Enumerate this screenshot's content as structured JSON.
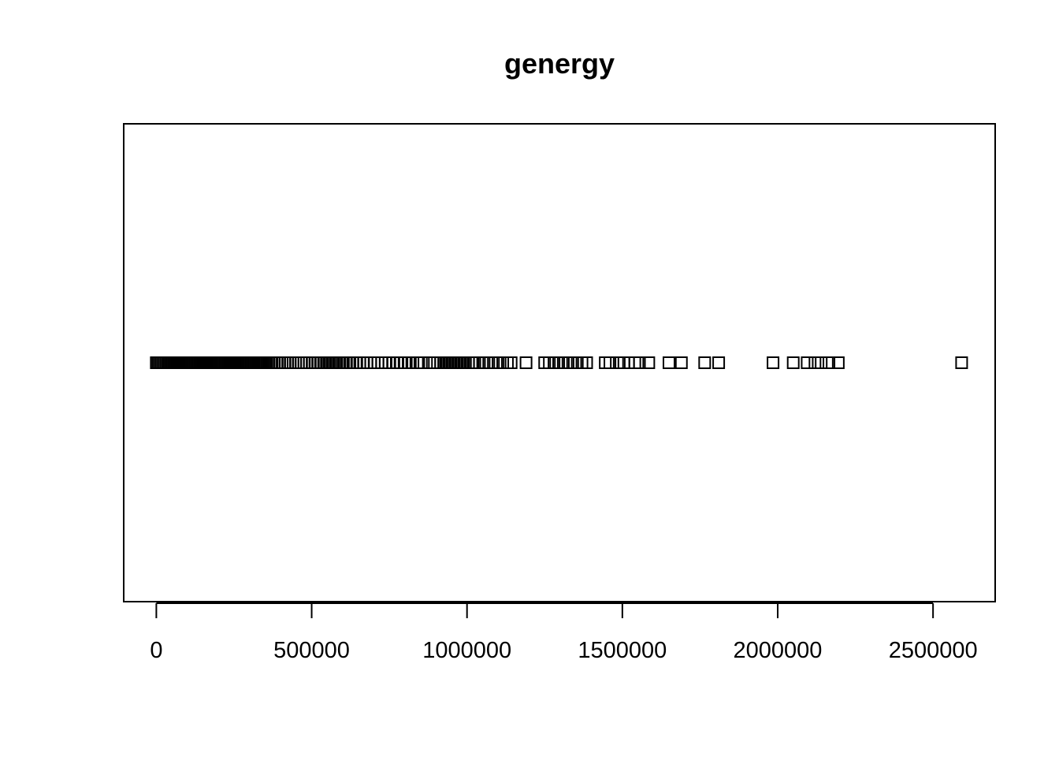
{
  "chart_data": {
    "type": "scatter",
    "title": "genergy",
    "xlabel": "",
    "ylabel": "",
    "xlim": [
      -105000,
      2700000
    ],
    "x_ticks": [
      0,
      500000,
      1000000,
      1500000,
      2000000,
      2500000
    ],
    "x_tick_labels": [
      "0",
      "500000",
      "1000000",
      "1500000",
      "2000000",
      "2500000"
    ],
    "marker": "open-square",
    "grid": false,
    "legend": "none",
    "x": [
      0,
      5000,
      10000,
      15000,
      20000,
      25000,
      30000,
      35000,
      40000,
      45000,
      50000,
      55000,
      60000,
      65000,
      70000,
      75000,
      80000,
      85000,
      90000,
      95000,
      100000,
      105000,
      110000,
      115000,
      120000,
      125000,
      130000,
      135000,
      140000,
      145000,
      150000,
      155000,
      160000,
      165000,
      170000,
      175000,
      180000,
      185000,
      190000,
      195000,
      200000,
      205000,
      210000,
      215000,
      220000,
      225000,
      230000,
      235000,
      240000,
      245000,
      250000,
      255000,
      260000,
      265000,
      270000,
      275000,
      280000,
      285000,
      290000,
      295000,
      300000,
      305000,
      310000,
      315000,
      320000,
      325000,
      330000,
      335000,
      340000,
      345000,
      350000,
      356000,
      363000,
      372000,
      380000,
      389000,
      397000,
      405000,
      414000,
      423000,
      431000,
      440000,
      448000,
      457000,
      466000,
      475000,
      484000,
      493000,
      503000,
      512000,
      521000,
      531000,
      541000,
      551000,
      561000,
      571000,
      581000,
      591000,
      602000,
      612000,
      623000,
      633000,
      645000,
      655000,
      667000,
      678000,
      690000,
      701000,
      713000,
      725000,
      737000,
      749000,
      762000,
      775000,
      787000,
      800000,
      813000,
      826000,
      840000,
      853000,
      880000,
      895000,
      905000,
      915000,
      925000,
      935000,
      945000,
      955000,
      965000,
      975000,
      985000,
      995000,
      1005000,
      1015000,
      1025000,
      1040000,
      1055000,
      1070000,
      1085000,
      1100000,
      1115000,
      1130000,
      1142000,
      1190000,
      1250000,
      1265000,
      1280000,
      1295000,
      1310000,
      1325000,
      1340000,
      1355000,
      1370000,
      1385000,
      1445000,
      1460000,
      1490000,
      1505000,
      1520000,
      1540000,
      1555000,
      1585000,
      1650000,
      1690000,
      1765000,
      1810000,
      1985000,
      2050000,
      2095000,
      2120000,
      2140000,
      2165000,
      2195000,
      2592000
    ]
  }
}
